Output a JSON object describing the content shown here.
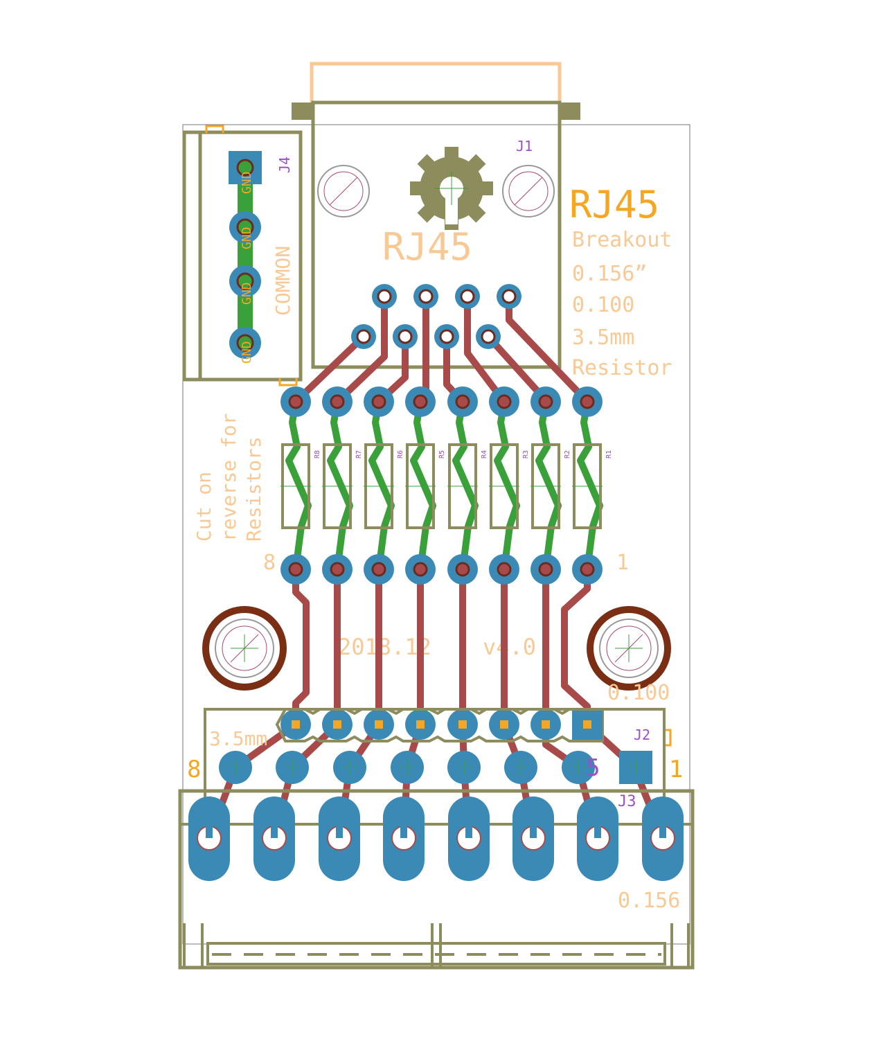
{
  "colors": {
    "background": "#ffffff",
    "outline": "#8c8c5c",
    "silk": "#f5a623",
    "silk_light": "#f8c995",
    "pad": "#3a8ab5",
    "drill": "#6b2b1f",
    "trace_top": "#a84a4a",
    "trace_bottom": "#3aa03a",
    "ref_text": "#9b4fc9",
    "mount_ring": "#7a2e14"
  },
  "title": {
    "main": "RJ45",
    "line1": "Breakout",
    "line2": "0.156”",
    "line3": "0.100",
    "line4": "3.5mm",
    "line5": "Resistor"
  },
  "connector_label": "RJ45",
  "common_label": "COMMON",
  "gnd_labels": [
    "GND",
    "GND",
    "GND",
    "GND"
  ],
  "cut_note": [
    "Cut on",
    "reverse for",
    "Resistors"
  ],
  "date_label": "2018.12",
  "version_label": "v4.0",
  "labels": {
    "pin_eight": "8",
    "pin_one": "1",
    "header_0100": "0.100",
    "header_35mm": "3.5mm",
    "header_0156": "0.156",
    "bottom_eight": "8",
    "bottom_one": "1",
    "marker_five": "5"
  },
  "refdes": {
    "j1": "J1",
    "j2": "J2",
    "j3": "J3",
    "j4": "J4"
  },
  "resistors": [
    "R8",
    "R7",
    "R6",
    "R5",
    "R4",
    "R3",
    "R2",
    "R1"
  ]
}
